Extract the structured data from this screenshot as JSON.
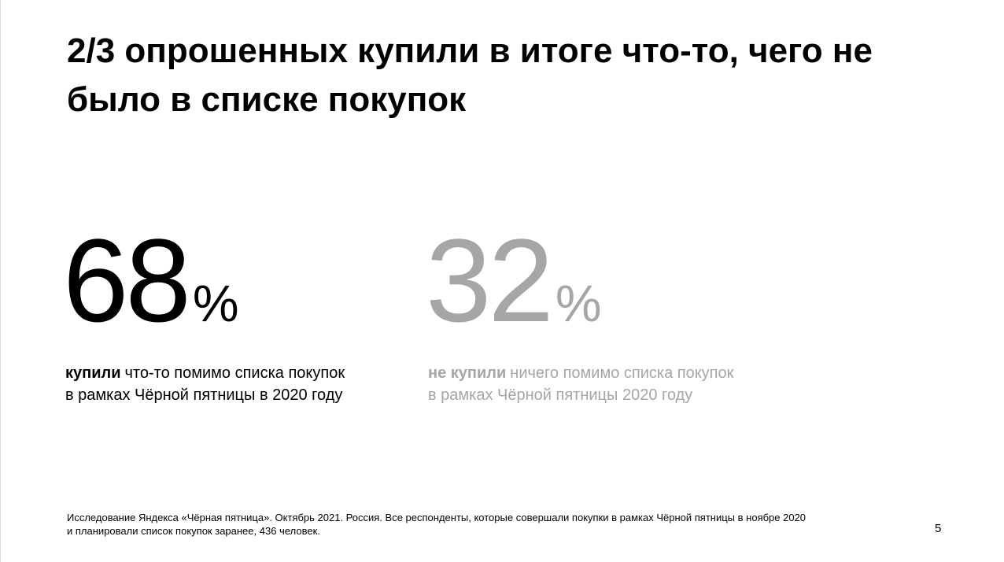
{
  "title": "2/3 опрошенных купили в итоге что-то, чего не было в списке покупок",
  "stats": [
    {
      "number": "68",
      "unit": "%",
      "lead": "купили",
      "line1": "что-то помимо списка покупок",
      "line2": "в рамках Чёрной пятницы в 2020 году"
    },
    {
      "number": "32",
      "unit": "%",
      "lead": "не купили",
      "line1": "ничего помимо списка покупок",
      "line2": "в рамках Чёрной пятницы 2020 году"
    }
  ],
  "footnote": [
    "Исследование Яндекса «Чёрная пятница». Октябрь 2021. Россия. Все респонденты, которые совершали покупки в рамках Чёрной пятницы в ноябре 2020",
    "и планировали список покупок заранее, 436 человек."
  ],
  "page_number": "5"
}
